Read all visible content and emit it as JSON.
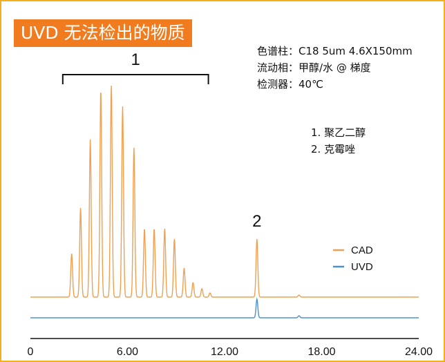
{
  "title_banner": "UVD 无法检出的物质",
  "conditions": {
    "column": "色谱柱：C18 5um 4.6X150mm",
    "mobile_phase": "流动相：甲醇/水 @ 梯度",
    "detector": "检测器：40℃"
  },
  "compounds": [
    "1. 聚乙二醇",
    "2. 克霉唑"
  ],
  "colors": {
    "banner": "#f07c1f",
    "frame": "#f3b01c",
    "cad": "#f0a050",
    "uvd": "#4a90d0"
  },
  "chart_data": {
    "type": "line",
    "x_ticks": [
      "0",
      "6.00",
      "12.00",
      "18.00",
      "24.00"
    ],
    "xlim": [
      0,
      24
    ],
    "grid": false,
    "legend_position": "right",
    "annotations": [
      {
        "text": "1",
        "kind": "bracket",
        "x_start": 2.0,
        "x_end": 11.0
      },
      {
        "text": "2",
        "kind": "peak",
        "x": 14.0
      }
    ],
    "series": [
      {
        "name": "CAD",
        "baseline": 0,
        "peaks": [
          {
            "x": 2.55,
            "height": 0.21
          },
          {
            "x": 3.1,
            "height": 0.43
          },
          {
            "x": 3.7,
            "height": 0.76
          },
          {
            "x": 4.35,
            "height": 1.0
          },
          {
            "x": 5.0,
            "height": 1.02
          },
          {
            "x": 5.7,
            "height": 0.92
          },
          {
            "x": 6.4,
            "height": 0.72
          },
          {
            "x": 7.05,
            "height": 0.33
          },
          {
            "x": 7.65,
            "height": 0.33
          },
          {
            "x": 8.3,
            "height": 0.33
          },
          {
            "x": 8.9,
            "height": 0.28
          },
          {
            "x": 9.5,
            "height": 0.14
          },
          {
            "x": 10.05,
            "height": 0.07
          },
          {
            "x": 10.6,
            "height": 0.04
          },
          {
            "x": 11.1,
            "height": 0.02
          },
          {
            "x": 14.0,
            "height": 0.28
          },
          {
            "x": 16.6,
            "height": 0.01
          }
        ]
      },
      {
        "name": "UVD",
        "baseline": -0.1,
        "peaks": [
          {
            "x": 14.0,
            "height": 0.09
          },
          {
            "x": 16.6,
            "height": 0.01
          }
        ]
      }
    ]
  }
}
